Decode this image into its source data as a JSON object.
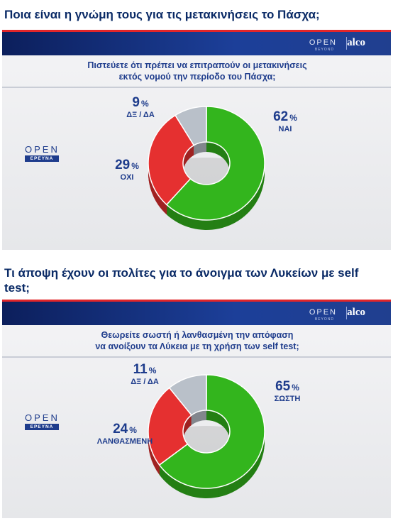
{
  "headlines": {
    "first": "Ποια είναι η γνώμη τους για τις μετακινήσεις το Πάσχα;",
    "second": "Τι άποψη έχουν οι πολίτες για το άνοιγμα των Λυκείων με self test;"
  },
  "branding": {
    "open": "OPEN",
    "open_sub": "BEYOND",
    "alco": "alco",
    "logo_word": "OPEN",
    "logo_band": "ΕΡΕΥΝΑ"
  },
  "colors": {
    "yes": "#33b51d",
    "no": "#e53030",
    "dk": "#b9c0c9",
    "text": "#1e3c8c",
    "headline": "#0a2a66"
  },
  "chart_data": [
    {
      "type": "pie",
      "subtype": "donut",
      "title": "Πιστεύετε ότι πρέπει να επιτραπούν οι μετακινήσεις εκτός νομού την περίοδο του Πάσχα;",
      "title_line1": "Πιστεύετε ότι πρέπει να επιτραπούν οι μετακινήσεις",
      "title_line2": "εκτός νομού την περίοδο του Πάσχα;",
      "slices": [
        {
          "label": "ΝΑΙ",
          "value": 62,
          "display": "62",
          "unit": "%",
          "color": "#33b51d"
        },
        {
          "label": "ΟΧΙ",
          "value": 29,
          "display": "29",
          "unit": "%",
          "color": "#e53030"
        },
        {
          "label": "ΔΞ / ΔΑ",
          "value": 9,
          "display": "9",
          "unit": "%",
          "color": "#b9c0c9"
        }
      ]
    },
    {
      "type": "pie",
      "subtype": "donut",
      "title": "Θεωρείτε σωστή ή λανθασμένη την απόφαση να ανοίξουν τα Λύκεια με τη χρήση των self test;",
      "title_line1": "Θεωρείτε σωστή ή λανθασμένη την απόφαση",
      "title_line2": "να ανοίξουν τα Λύκεια με τη χρήση των self test;",
      "slices": [
        {
          "label": "ΣΩΣΤΗ",
          "value": 65,
          "display": "65",
          "unit": "%",
          "color": "#33b51d"
        },
        {
          "label": "ΛΑΝΘΑΣΜΕΝΗ",
          "value": 24,
          "display": "24",
          "unit": "%",
          "color": "#e53030"
        },
        {
          "label": "ΔΞ / ΔΑ",
          "value": 11,
          "display": "11",
          "unit": "%",
          "color": "#b9c0c9"
        }
      ]
    }
  ]
}
